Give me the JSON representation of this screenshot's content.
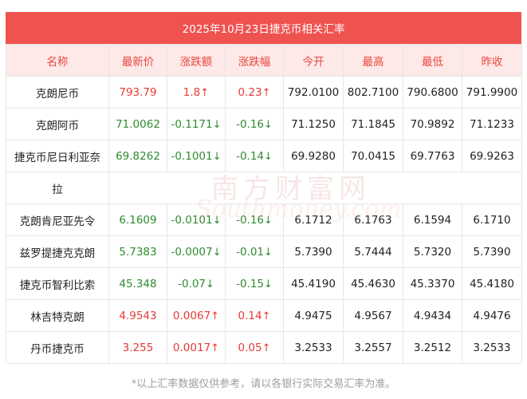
{
  "title": "2025年10月23日捷克币相关汇率",
  "headers": [
    "名称",
    "最新价",
    "涨跌额",
    "涨跌幅",
    "今开",
    "最高",
    "最低",
    "昨收"
  ],
  "colors": {
    "header_bg": "#fde9e8",
    "title_bg": "#ef5350",
    "up": "#e53935",
    "down": "#2e8b2e"
  },
  "rows": [
    {
      "name": "克朗尼币",
      "price": "793.79",
      "change": "1.8",
      "pct": "0.23",
      "dir": "up",
      "arrow": "↑",
      "open": "792.0100",
      "high": "802.7100",
      "low": "790.6800",
      "prev": "791.9900"
    },
    {
      "name": "克朗阿币",
      "price": "71.0062",
      "change": "-0.1171",
      "pct": "-0.16",
      "dir": "down",
      "arrow": "↓",
      "open": "71.1250",
      "high": "71.1845",
      "low": "70.9892",
      "prev": "71.1233"
    },
    {
      "name": "捷克币尼日利亚奈",
      "name2": "拉",
      "price": "69.8262",
      "change": "-0.1001",
      "pct": "-0.14",
      "dir": "down",
      "arrow": "↓",
      "open": "69.9280",
      "high": "70.0415",
      "low": "69.7763",
      "prev": "69.9263"
    },
    {
      "name": "克朗肯尼亚先令",
      "price": "6.1609",
      "change": "-0.0101",
      "pct": "-0.16",
      "dir": "down",
      "arrow": "↓",
      "open": "6.1712",
      "high": "6.1763",
      "low": "6.1594",
      "prev": "6.1710"
    },
    {
      "name": "兹罗提捷克克朗",
      "price": "5.7383",
      "change": "-0.0007",
      "pct": "-0.01",
      "dir": "down",
      "arrow": "↓",
      "open": "5.7390",
      "high": "5.7444",
      "low": "5.7320",
      "prev": "5.7390"
    },
    {
      "name": "捷克币智利比索",
      "price": "45.348",
      "change": "-0.07",
      "pct": "-0.15",
      "dir": "down",
      "arrow": "↓",
      "open": "45.4190",
      "high": "45.4630",
      "low": "45.3370",
      "prev": "45.4180"
    },
    {
      "name": "林吉特克朗",
      "price": "4.9543",
      "change": "0.0067",
      "pct": "0.14",
      "dir": "up",
      "arrow": "↑",
      "open": "4.9475",
      "high": "4.9567",
      "low": "4.9434",
      "prev": "4.9476"
    },
    {
      "name": "丹币捷克币",
      "price": "3.255",
      "change": "0.0017",
      "pct": "0.05",
      "dir": "up",
      "arrow": "↑",
      "open": "3.2533",
      "high": "3.2557",
      "low": "3.2512",
      "prev": "3.2533"
    }
  ],
  "watermark": {
    "cn": "南方财富网",
    "en": "Southmoney.com"
  },
  "footnote": "*以上汇率数据仅供参考，请以各银行实际交易汇率为准。"
}
